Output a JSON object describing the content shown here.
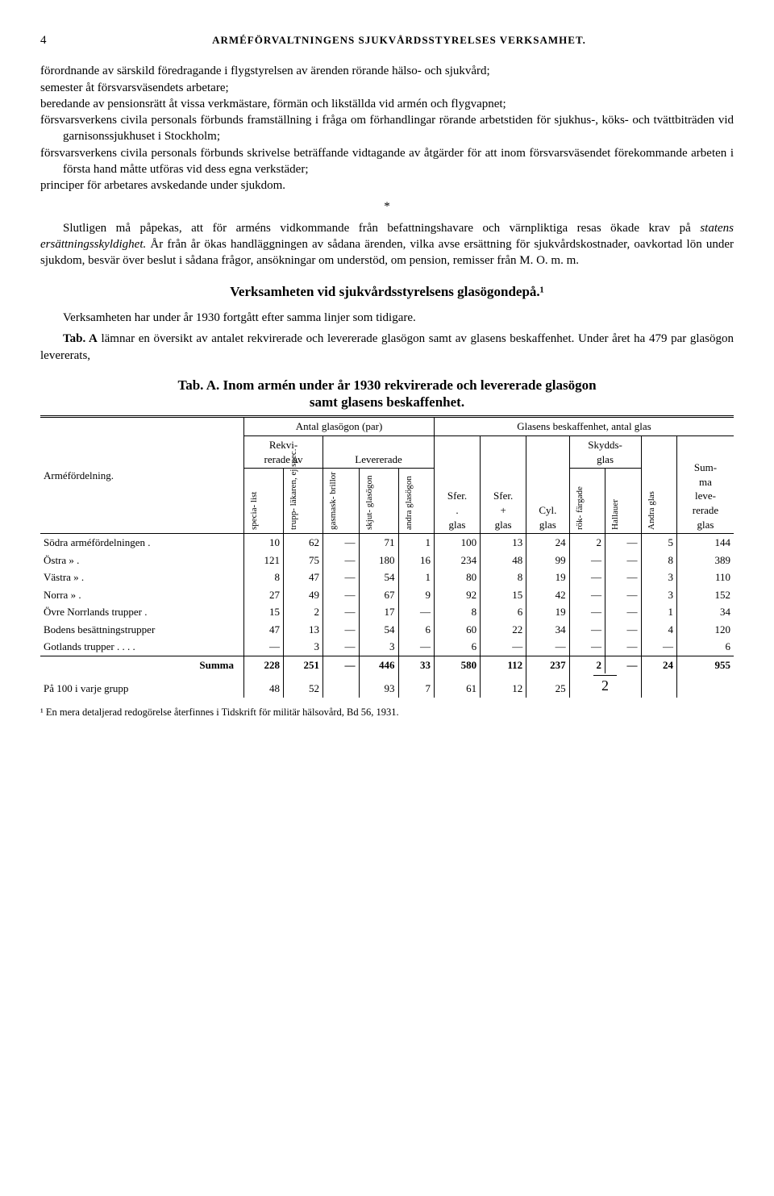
{
  "header": {
    "page_number": "4",
    "running_title": "ARMÉFÖRVALTNINGENS SJUKVÅRDSSTYRELSES VERKSAMHET."
  },
  "paragraphs": {
    "p1": "förordnande av särskild föredragande i flygstyrelsen av ärenden rörande hälso- och sjukvård;",
    "p2": "semester åt försvarsväsendets arbetare;",
    "p3": "beredande av pensionsrätt åt vissa verkmästare, förmän och likställda vid armén och flygvapnet;",
    "p4": "försvarsverkens civila personals förbunds framställning i fråga om förhandlingar rörande arbetstiden för sjukhus-, köks- och tvättbiträden vid garnisonssjukhuset i Stockholm;",
    "p5": "försvarsverkens civila personals förbunds skrivelse beträffande vidtagande av åtgärder för att inom försvarsväsendet förekommande arbeten i första hand måtte utföras vid dess egna verkstäder;",
    "p6": "principer för arbetares avskedande under sjukdom.",
    "star": "*",
    "p7a": "Slutligen må påpekas, att för arméns vidkommande från befattningshavare och värnpliktiga resas ökade krav på ",
    "p7i": "statens ersättningsskyldighet.",
    "p7b": " År från år ökas handläggningen av sådana ärenden, vilka avse ersättning för sjukvårdskostnader, oavkortad lön under sjukdom, besvär över beslut i sådana frågor, ansökningar om understöd, om pension, remisser från M. O. m. m.",
    "section_heading": "Verksamheten vid sjukvårdsstyrelsens glasögondepå.¹",
    "p8": "Verksamheten har under år 1930 fortgått efter samma linjer som tidigare.",
    "p9a": "Tab. A",
    "p9b": " lämnar en översikt av antalet rekvirerade och levererade glasögon samt av glasens beskaffenhet. Under året ha 479 par glasögon levererats,",
    "table_caption_a": "Tab. A.  Inom armén under år 1930 rekvirerade och levererade glasögon",
    "table_caption_b": "samt glasens beskaffenhet."
  },
  "table": {
    "group1": "Antal glasögon (par)",
    "group2": "Glasens beskaffenhet, antal glas",
    "col_armdiv": "Arméfördelning.",
    "sub_rekv": "Rekvi-\nrerade av",
    "sub_lev": "Levererade",
    "sub_skydd": "Skydds-\nglas",
    "vh": {
      "v1": "specia-\nlist",
      "v2": "trupp-\nläkaren,\nej spec.",
      "v3": "gasmask-\nbrillor",
      "v4": "skjut-\nglasögon",
      "v5": "andra\nglasögon",
      "v6": "rök-\nfärgade",
      "v7": "Hallauer",
      "v8": "Andra glas"
    },
    "col_sfer_dot": "Sfer.\n.\nglas",
    "col_sfer_plus": "Sfer.\n+\nglas",
    "col_cyl": "Cyl.\nglas",
    "col_summa": "Sum-\nma\nleve-\nrerade\nglas",
    "rows": [
      {
        "label": "Södra arméfördelningen .",
        "c": [
          "10",
          "62",
          "—",
          "71",
          "1",
          "100",
          "13",
          "24",
          "2",
          "—",
          "5",
          "144"
        ]
      },
      {
        "label": "Östra          »        .",
        "c": [
          "121",
          "75",
          "—",
          "180",
          "16",
          "234",
          "48",
          "99",
          "—",
          "—",
          "8",
          "389"
        ]
      },
      {
        "label": "Västra         »        .",
        "c": [
          "8",
          "47",
          "—",
          "54",
          "1",
          "80",
          "8",
          "19",
          "—",
          "—",
          "3",
          "110"
        ]
      },
      {
        "label": "Norra          »        .",
        "c": [
          "27",
          "49",
          "—",
          "67",
          "9",
          "92",
          "15",
          "42",
          "—",
          "—",
          "3",
          "152"
        ]
      },
      {
        "label": "Övre Norrlands trupper .",
        "c": [
          "15",
          "2",
          "—",
          "17",
          "—",
          "8",
          "6",
          "19",
          "—",
          "—",
          "1",
          "34"
        ]
      },
      {
        "label": "Bodens besättningstrupper",
        "c": [
          "47",
          "13",
          "—",
          "54",
          "6",
          "60",
          "22",
          "34",
          "—",
          "—",
          "4",
          "120"
        ]
      },
      {
        "label": "Gotlands trupper . . . .",
        "c": [
          "—",
          "3",
          "—",
          "3",
          "—",
          "6",
          "—",
          "—",
          "—",
          "—",
          "—",
          "6"
        ]
      }
    ],
    "sum": {
      "label": "Summa",
      "c": [
        "228",
        "251",
        "—",
        "446",
        "33",
        "580",
        "112",
        "237",
        "2",
        "—",
        "24",
        "955"
      ]
    },
    "pct": {
      "label": "På 100 i varje grupp",
      "c": [
        "48",
        "52",
        "",
        "93",
        "7",
        "61",
        "12",
        "25",
        "",
        "2",
        "",
        ""
      ]
    }
  },
  "footnote": "¹ En mera detaljerad redogörelse återfinnes i Tidskrift för militär hälsovård, Bd 56, 1931."
}
